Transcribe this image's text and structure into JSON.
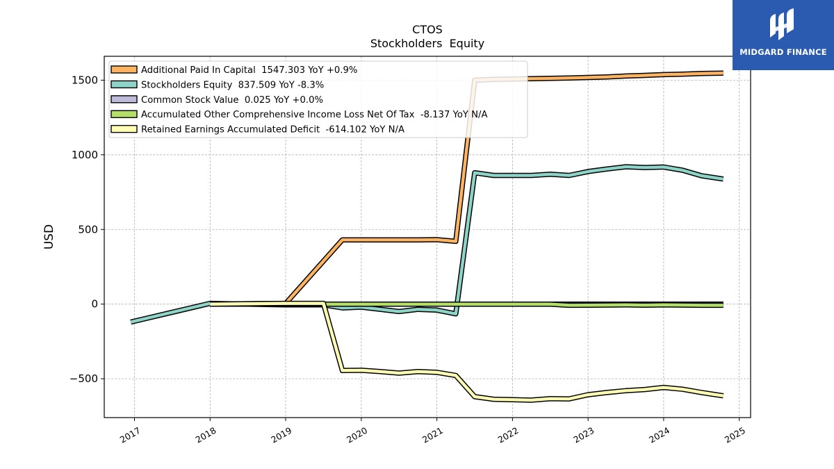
{
  "chart_data": {
    "type": "line",
    "title": "CTOS",
    "subtitle": "Stockholders  Equity",
    "ylabel": "USD",
    "xlabel": "",
    "ylim": [
      -760,
      1660
    ],
    "xlim": [
      2016.6,
      2025.15
    ],
    "x_ticks": [
      2017,
      2018,
      2019,
      2020,
      2021,
      2022,
      2023,
      2024,
      2025
    ],
    "x_tick_labels": [
      "2017",
      "2018",
      "2019",
      "2020",
      "2021",
      "2022",
      "2023",
      "2024",
      "2025"
    ],
    "y_ticks": [
      -500,
      0,
      500,
      1000,
      1500
    ],
    "y_tick_labels": [
      "−500",
      "0",
      "500",
      "1000",
      "1500"
    ],
    "grid": true,
    "legend_position": "top-left",
    "series": [
      {
        "name": "Additional Paid In Capital  1547.303 YoY +0.9%",
        "color": "#fdb462",
        "points": [
          [
            2018.0,
            0
          ],
          [
            2019.0,
            5
          ],
          [
            2019.75,
            430
          ],
          [
            2020.0,
            430
          ],
          [
            2020.5,
            430
          ],
          [
            2020.75,
            430
          ],
          [
            2021.0,
            432
          ],
          [
            2021.25,
            420
          ],
          [
            2021.5,
            1500
          ],
          [
            2021.75,
            1505
          ],
          [
            2022.0,
            1508
          ],
          [
            2022.25,
            1510
          ],
          [
            2022.5,
            1512
          ],
          [
            2022.75,
            1515
          ],
          [
            2023.0,
            1518
          ],
          [
            2023.25,
            1522
          ],
          [
            2023.5,
            1528
          ],
          [
            2023.75,
            1532
          ],
          [
            2024.0,
            1537
          ],
          [
            2024.25,
            1540
          ],
          [
            2024.5,
            1545
          ],
          [
            2024.79,
            1547.303
          ]
        ]
      },
      {
        "name": "Stockholders Equity  837.509 YoY -8.3%",
        "color": "#8dd3c7",
        "points": [
          [
            2016.95,
            -120
          ],
          [
            2018.0,
            5
          ],
          [
            2019.0,
            -5
          ],
          [
            2019.5,
            -5
          ],
          [
            2019.75,
            -25
          ],
          [
            2020.0,
            -20
          ],
          [
            2020.25,
            -35
          ],
          [
            2020.5,
            -50
          ],
          [
            2020.75,
            -35
          ],
          [
            2021.0,
            -40
          ],
          [
            2021.25,
            -65
          ],
          [
            2021.5,
            880
          ],
          [
            2021.75,
            862
          ],
          [
            2022.0,
            862
          ],
          [
            2022.25,
            862
          ],
          [
            2022.5,
            870
          ],
          [
            2022.75,
            862
          ],
          [
            2023.0,
            888
          ],
          [
            2023.25,
            905
          ],
          [
            2023.5,
            920
          ],
          [
            2023.75,
            915
          ],
          [
            2024.0,
            918
          ],
          [
            2024.25,
            897
          ],
          [
            2024.5,
            860
          ],
          [
            2024.79,
            837.509
          ]
        ]
      },
      {
        "name": "Common Stock Value  0.025 YoY +0.0%",
        "color": "#bebada",
        "points": [
          [
            2018.0,
            0.01
          ],
          [
            2019.0,
            0.01
          ],
          [
            2020.0,
            0.02
          ],
          [
            2021.0,
            0.02
          ],
          [
            2022.0,
            0.025
          ],
          [
            2023.0,
            0.025
          ],
          [
            2024.0,
            0.025
          ],
          [
            2024.79,
            0.025
          ]
        ]
      },
      {
        "name": "Accumulated Other Comprehensive Income Loss Net Of Tax  -8.137 YoY N/A",
        "color": "#b3de69",
        "points": [
          [
            2019.5,
            0
          ],
          [
            2020.0,
            0
          ],
          [
            2021.0,
            0
          ],
          [
            2022.0,
            0
          ],
          [
            2022.5,
            0
          ],
          [
            2022.75,
            -8
          ],
          [
            2023.0,
            -7
          ],
          [
            2023.5,
            -5
          ],
          [
            2023.75,
            -7
          ],
          [
            2024.0,
            -5
          ],
          [
            2024.5,
            -8
          ],
          [
            2024.79,
            -8.137
          ]
        ]
      },
      {
        "name": "Retained Earnings Accumulated Deficit  -614.102 YoY N/A",
        "color": "#ffffb3",
        "points": [
          [
            2018.0,
            0
          ],
          [
            2019.0,
            5
          ],
          [
            2019.5,
            5
          ],
          [
            2019.75,
            -445
          ],
          [
            2020.0,
            -443
          ],
          [
            2020.25,
            -452
          ],
          [
            2020.5,
            -462
          ],
          [
            2020.75,
            -452
          ],
          [
            2021.0,
            -457
          ],
          [
            2021.25,
            -478
          ],
          [
            2021.5,
            -620
          ],
          [
            2021.75,
            -637
          ],
          [
            2022.0,
            -640
          ],
          [
            2022.25,
            -643
          ],
          [
            2022.5,
            -633
          ],
          [
            2022.75,
            -635
          ],
          [
            2023.0,
            -607
          ],
          [
            2023.25,
            -592
          ],
          [
            2023.5,
            -580
          ],
          [
            2023.75,
            -572
          ],
          [
            2024.0,
            -558
          ],
          [
            2024.25,
            -570
          ],
          [
            2024.5,
            -592
          ],
          [
            2024.79,
            -614.102
          ]
        ]
      }
    ]
  },
  "logo": {
    "text": "MIDGARD FINANCE",
    "background": "#2b5bb0"
  }
}
